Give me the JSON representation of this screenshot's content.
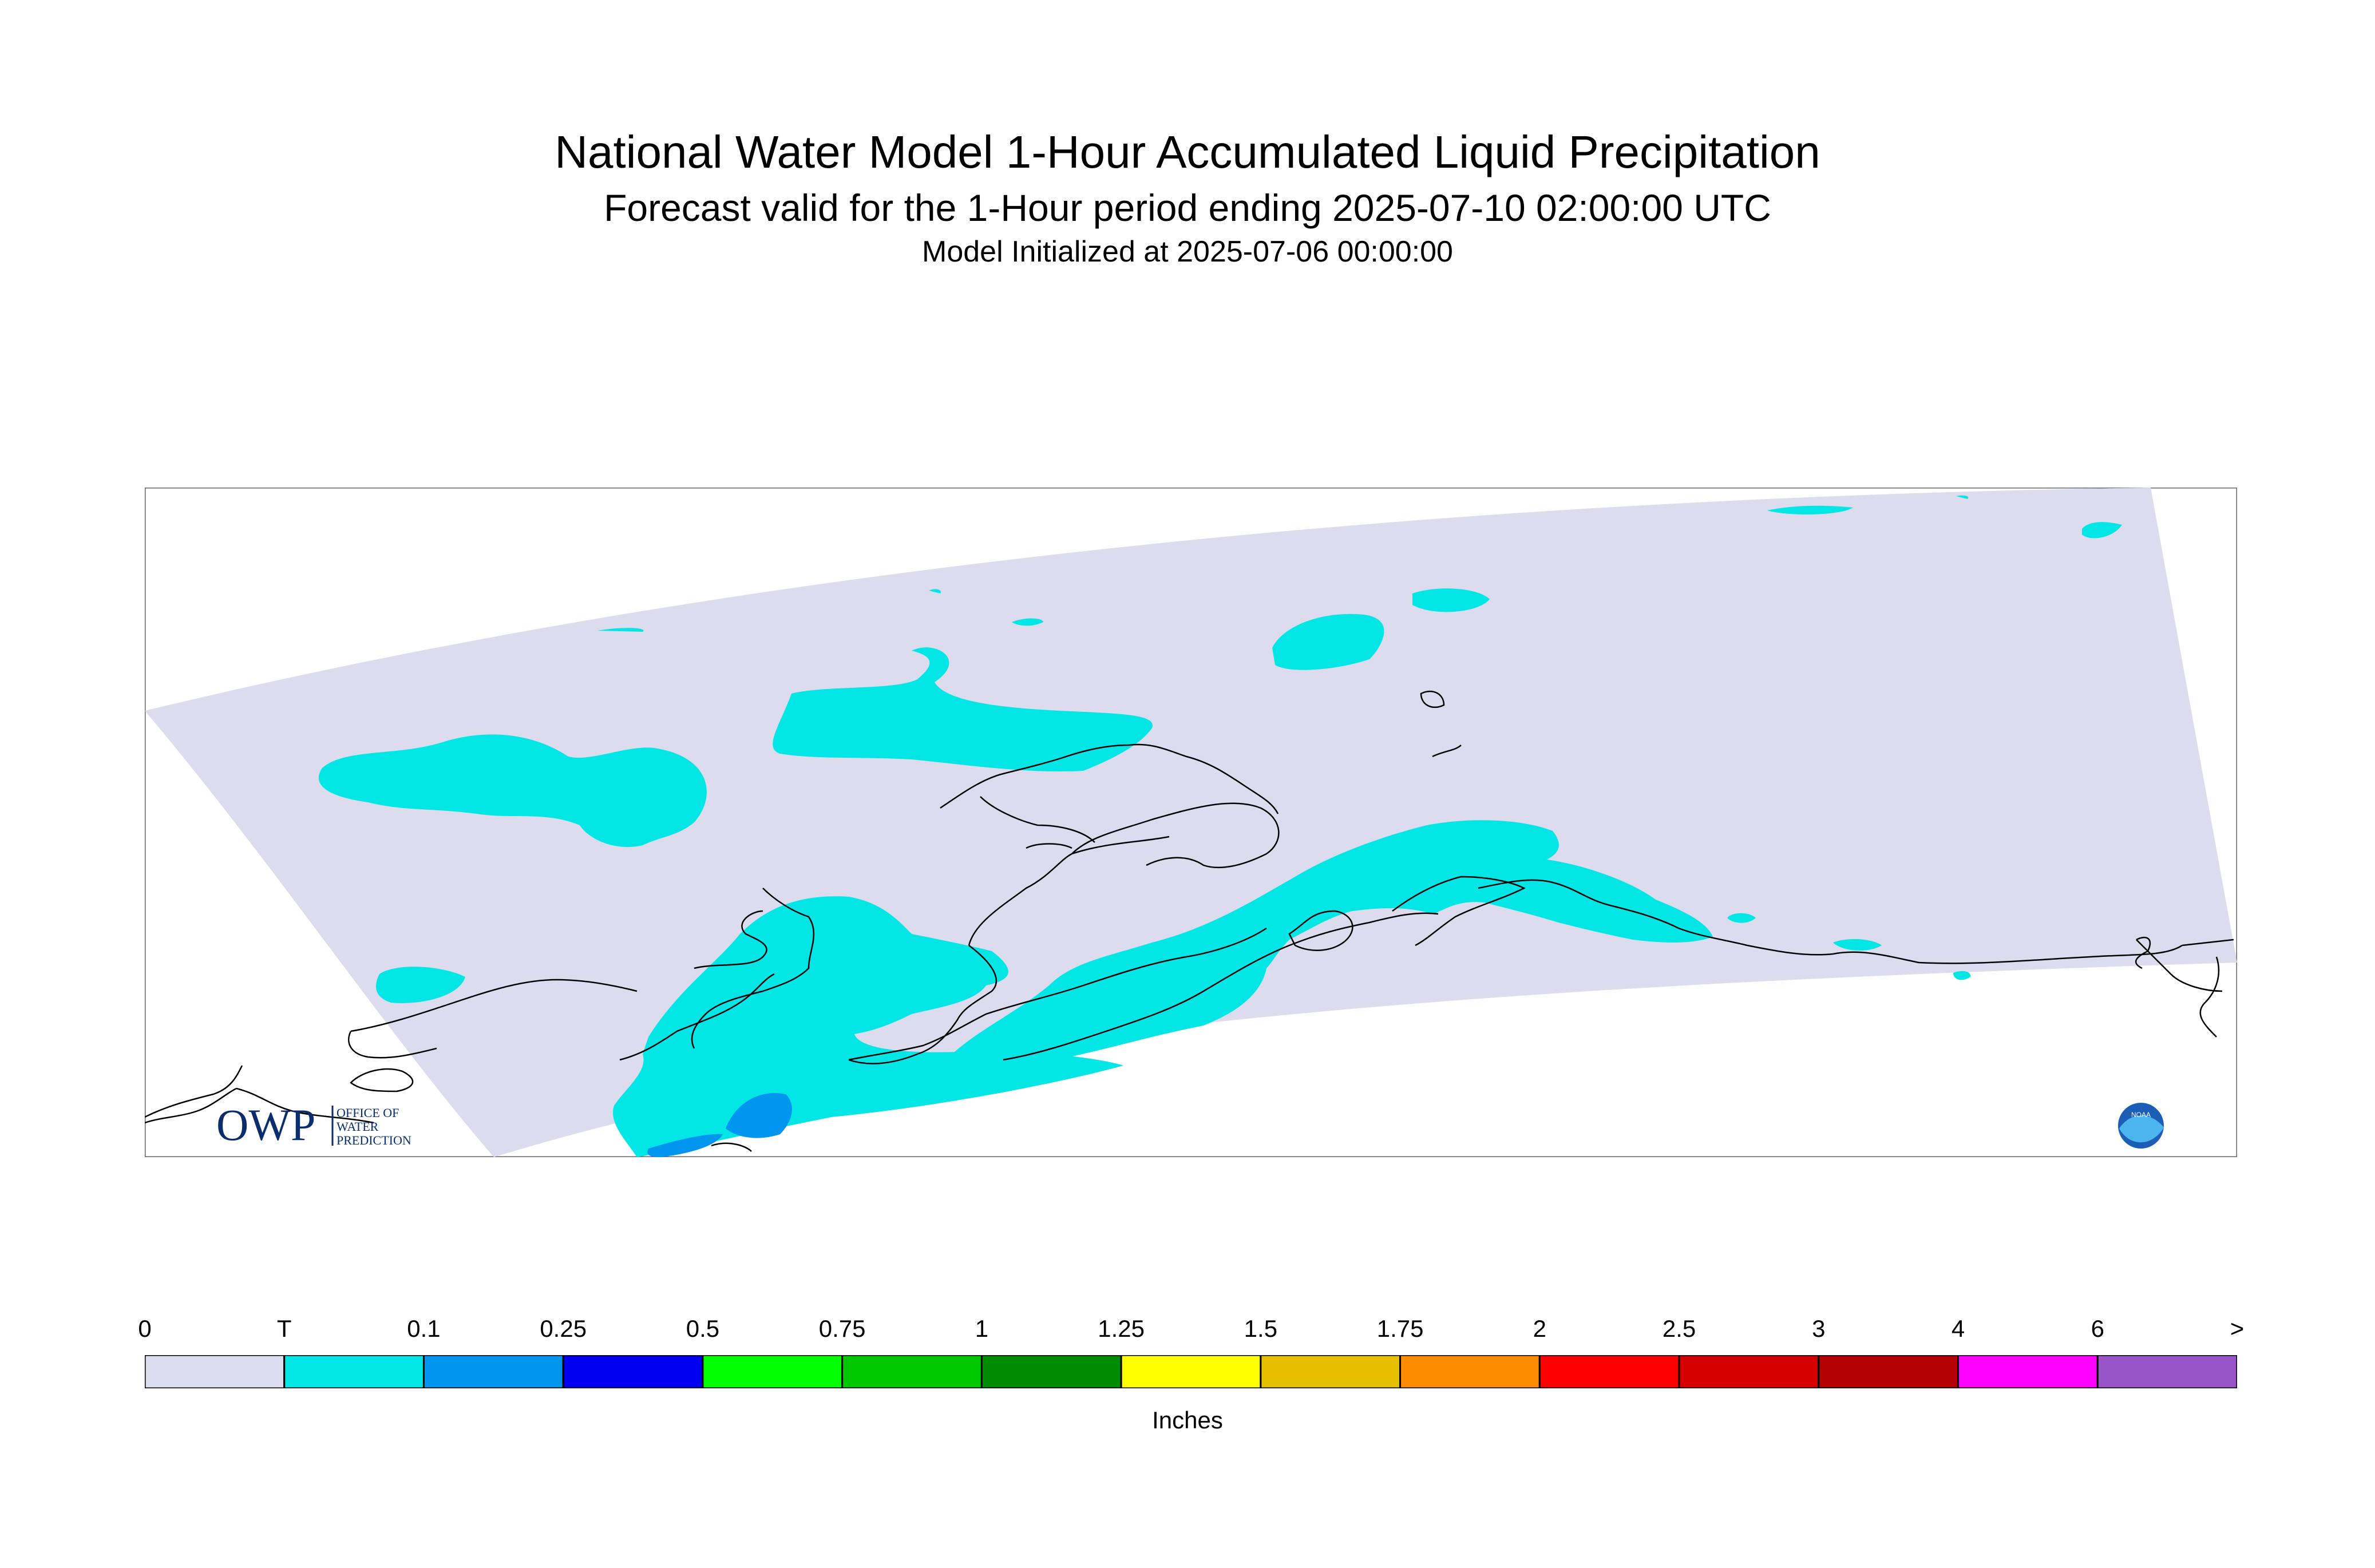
{
  "title": "National Water Model 1-Hour Accumulated Liquid Precipitation",
  "subtitle": "Forecast valid for the 1-Hour period ending 2025-07-10 02:00:00 UTC",
  "init_line": "Model Initialized at 2025-07-06 00:00:00",
  "map": {
    "region": "Alaska",
    "logo_owp_big": "OWP",
    "logo_owp_line1": "OFFICE OF",
    "logo_owp_line2": "WATER",
    "logo_owp_line3": "PREDICTION",
    "logo_noaa": "NOAA",
    "colors": {
      "domain": "#dcdcee",
      "trace": "#03e6e6",
      "light": "#0096f0",
      "coast": "#000000"
    }
  },
  "legend": {
    "ticks": [
      "0",
      "T",
      "0.1",
      "0.25",
      "0.5",
      "0.75",
      "1",
      "1.25",
      "1.5",
      "1.75",
      "2",
      "2.5",
      "3",
      "4",
      "6",
      ">"
    ],
    "colors": [
      "#dcdcee",
      "#03e6e6",
      "#0096f0",
      "#0000f0",
      "#00ff00",
      "#00c800",
      "#008c00",
      "#ffff00",
      "#e6bf00",
      "#ff8c00",
      "#ff0000",
      "#d70000",
      "#b40000",
      "#ff00ff",
      "#9955c8"
    ],
    "units": "Inches"
  }
}
